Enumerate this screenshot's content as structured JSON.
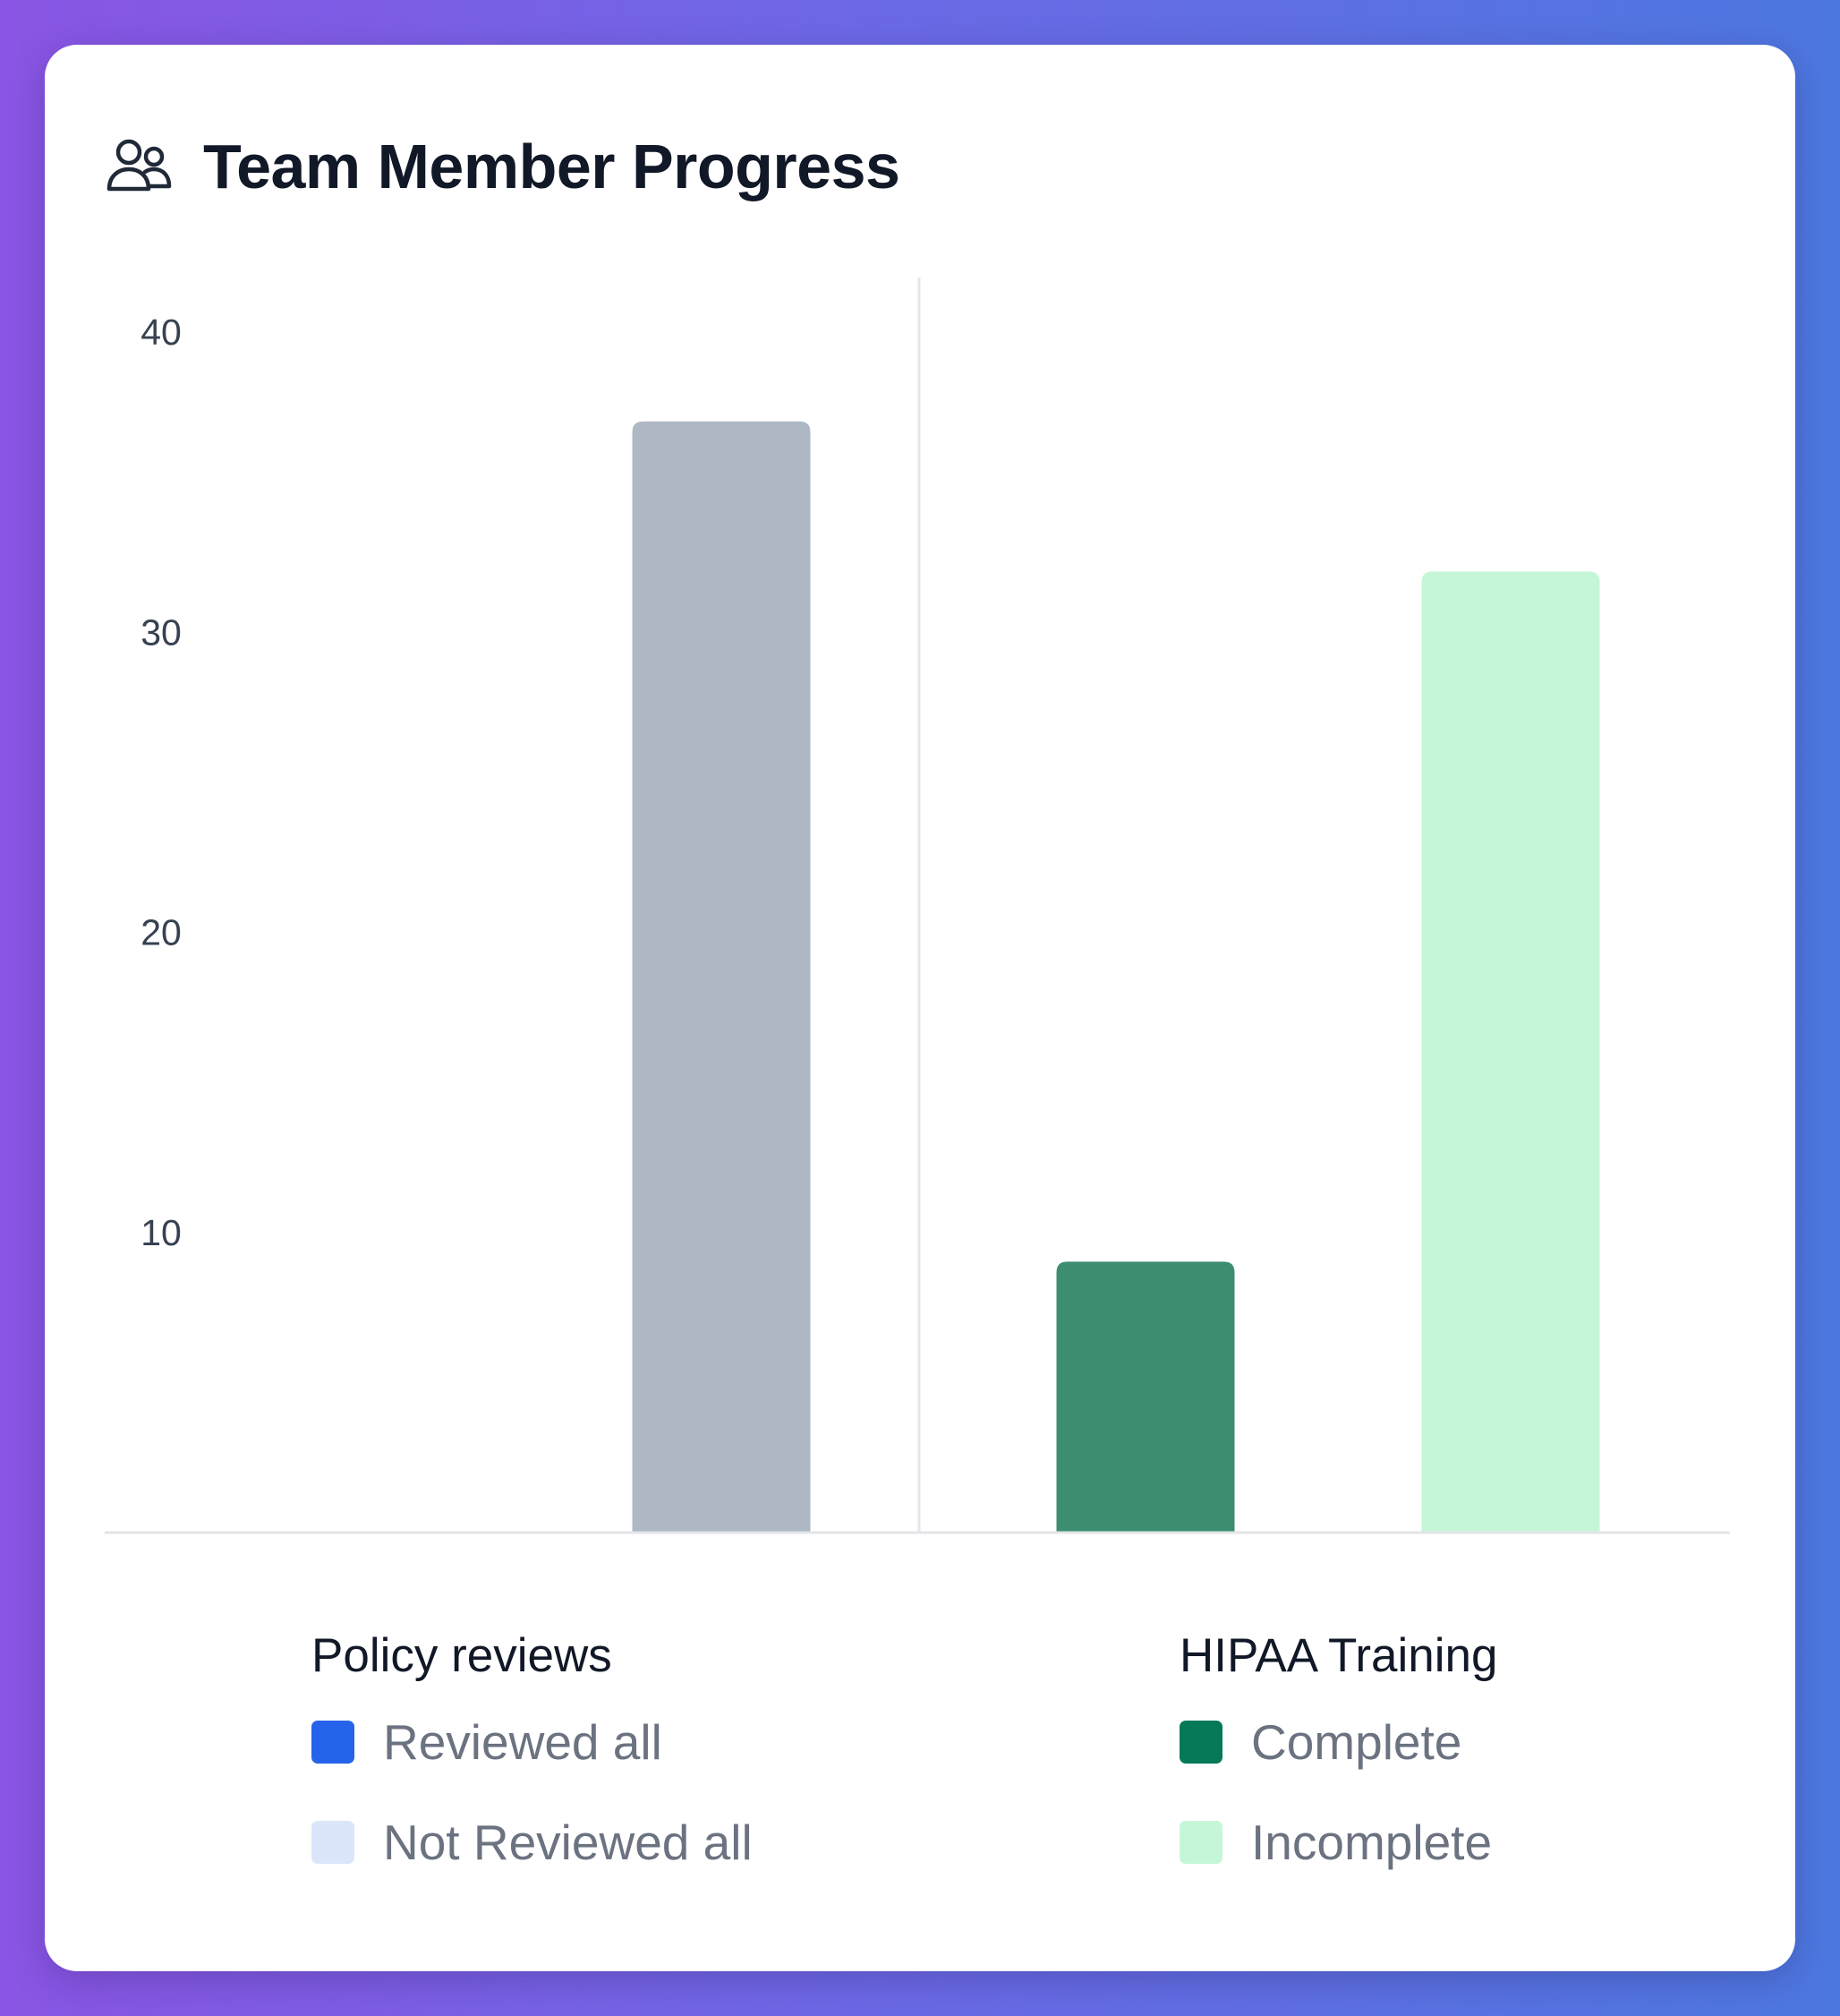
{
  "card": {
    "title": "Team Member Progress",
    "icon": "users-icon"
  },
  "chart_data": {
    "type": "bar",
    "title": "Team Member Progress",
    "xlabel": "",
    "ylabel": "",
    "ylim": [
      0,
      44
    ],
    "yticks": [
      10,
      20,
      30,
      40
    ],
    "grid": false,
    "legend_position": "bottom",
    "groups": [
      {
        "name": "Policy reviews",
        "series": [
          {
            "name": "Reviewed all",
            "value": 0,
            "color": "#2563eb",
            "bar_color": "#2563eb"
          },
          {
            "name": "Not Reviewed all",
            "value": 37,
            "color": "#dbe6fb",
            "bar_color": "#aeb8c5"
          }
        ]
      },
      {
        "name": "HIPAA Training",
        "series": [
          {
            "name": "Complete",
            "value": 9,
            "color": "#047857",
            "bar_color": "#3d8d71"
          },
          {
            "name": "Incomplete",
            "value": 32,
            "color": "#c5f6d8",
            "bar_color": "#c5f6d8"
          }
        ]
      }
    ]
  }
}
